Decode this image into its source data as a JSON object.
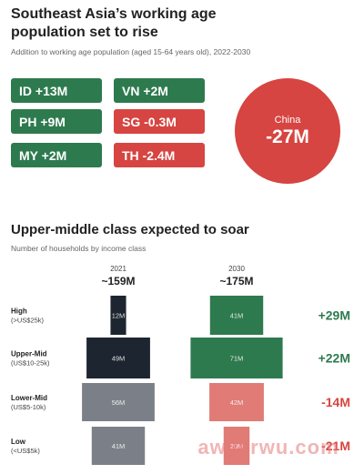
{
  "colors": {
    "green": "#2e7a4f",
    "red": "#d64541",
    "dark": "#1d2530",
    "grey": "#7b8088",
    "light_red": "#e07b76"
  },
  "section1": {
    "title": "Southeast Asia’s working age population set to rise",
    "subtitle": "Addition to working age population (aged 15-64 years old), 2022-2030",
    "pills": [
      {
        "label": "ID +13M",
        "color": "green"
      },
      {
        "label": "VN +2M",
        "color": "green"
      },
      {
        "label": "PH +9M",
        "color": "green"
      },
      {
        "label": "SG -0.3M",
        "color": "red"
      },
      {
        "label": "MY +2M",
        "color": "green"
      },
      {
        "label": "TH -2.4M",
        "color": "red"
      }
    ],
    "china": {
      "name": "China",
      "value": "-27M"
    }
  },
  "section2": {
    "title": "Upper-middle class expected to soar",
    "subtitle": "Number of households by income class"
  },
  "watermark": "awyerwu.com",
  "chart_data": {
    "type": "bar",
    "title": "Upper-middle class expected to soar",
    "subtitle": "Number of households by income class",
    "categories": [
      "High (>US$25k)",
      "Upper-Mid (US$10-25k)",
      "Lower-Mid (US$5-10k)",
      "Low (<US$5k)"
    ],
    "category_lines": [
      [
        "High",
        "(>US$25k)"
      ],
      [
        "Upper-Mid",
        "(US$10-25k)"
      ],
      [
        "Lower-Mid",
        "(US$5-10k)"
      ],
      [
        "Low",
        "(<US$5k)"
      ]
    ],
    "series": [
      {
        "name": "2021",
        "total": "~159M",
        "values": [
          12,
          49,
          56,
          41
        ],
        "labels": [
          "12M",
          "49M",
          "56M",
          "41M"
        ],
        "colors": [
          "dark",
          "dark",
          "grey",
          "grey"
        ]
      },
      {
        "name": "2030",
        "total": "~175M",
        "values": [
          41,
          71,
          42,
          20
        ],
        "labels": [
          "41M",
          "71M",
          "42M",
          "20M"
        ],
        "colors": [
          "green",
          "green",
          "light_red",
          "light_red"
        ]
      }
    ],
    "changes": [
      {
        "label": "+29M",
        "color": "green"
      },
      {
        "label": "+22M",
        "color": "green"
      },
      {
        "label": "-14M",
        "color": "red"
      },
      {
        "label": "-21M",
        "color": "red"
      }
    ]
  }
}
